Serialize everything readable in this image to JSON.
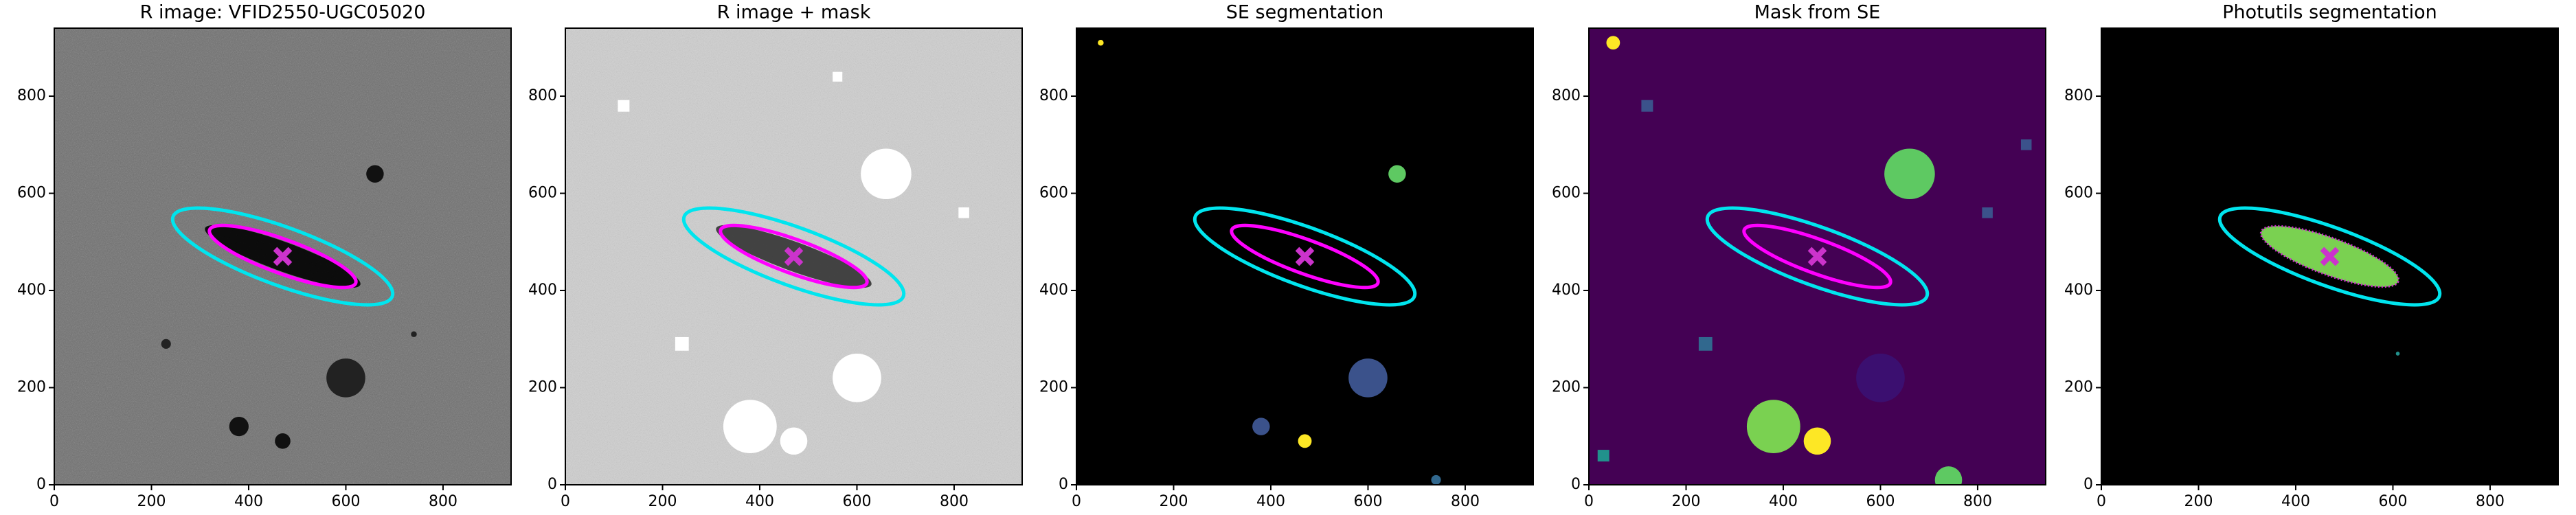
{
  "chart_data": [
    {
      "type": "image",
      "title": "R image: VFID2550-UGC05020",
      "background": "#6e6e6e",
      "xlim": [
        0,
        940
      ],
      "ylim": [
        0,
        940
      ],
      "xticks": [
        0,
        200,
        400,
        600,
        800
      ],
      "yticks": [
        0,
        200,
        400,
        600,
        800
      ],
      "ellipses": [
        {
          "color": "#00e5ee",
          "x": 470,
          "y": 470,
          "a": 240,
          "b": 60,
          "angle": -20
        },
        {
          "color": "#ff00ff",
          "x": 470,
          "y": 470,
          "a": 160,
          "b": 35,
          "angle": -20
        }
      ],
      "marker": {
        "color": "#cc33cc",
        "x": 470,
        "y": 470
      }
    },
    {
      "type": "image",
      "title": "R image + mask",
      "background": "#cfcfcf",
      "xlim": [
        0,
        940
      ],
      "ylim": [
        0,
        940
      ],
      "xticks": [
        0,
        200,
        400,
        600,
        800
      ],
      "yticks": [
        0,
        200,
        400,
        600,
        800
      ],
      "ellipses": [
        {
          "color": "#00e5ee",
          "x": 470,
          "y": 470,
          "a": 240,
          "b": 60,
          "angle": -20
        },
        {
          "color": "#ff00ff",
          "x": 470,
          "y": 470,
          "a": 160,
          "b": 35,
          "angle": -20
        }
      ],
      "marker": {
        "color": "#cc33cc",
        "x": 470,
        "y": 470
      }
    },
    {
      "type": "image",
      "title": "SE segmentation",
      "background": "#000000",
      "xlim": [
        0,
        940
      ],
      "ylim": [
        0,
        940
      ],
      "xticks": [
        0,
        200,
        400,
        600,
        800
      ],
      "yticks": [
        0,
        200,
        400,
        600,
        800
      ],
      "ellipses": [
        {
          "color": "#00e5ee",
          "x": 470,
          "y": 470,
          "a": 240,
          "b": 60,
          "angle": -20
        },
        {
          "color": "#ff00ff",
          "x": 470,
          "y": 470,
          "a": 160,
          "b": 35,
          "angle": -20
        }
      ],
      "marker": {
        "color": "#cc33cc",
        "x": 470,
        "y": 470
      }
    },
    {
      "type": "image",
      "title": "Mask from SE",
      "background": "#440154",
      "xlim": [
        0,
        940
      ],
      "ylim": [
        0,
        940
      ],
      "xticks": [
        0,
        200,
        400,
        600,
        800
      ],
      "yticks": [
        0,
        200,
        400,
        600,
        800
      ],
      "ellipses": [
        {
          "color": "#00e5ee",
          "x": 470,
          "y": 470,
          "a": 240,
          "b": 60,
          "angle": -20
        },
        {
          "color": "#ff00ff",
          "x": 470,
          "y": 470,
          "a": 160,
          "b": 35,
          "angle": -20
        }
      ],
      "marker": {
        "color": "#cc33cc",
        "x": 470,
        "y": 470
      }
    },
    {
      "type": "image",
      "title": "Photutils segmentation",
      "background": "#000000",
      "xlim": [
        0,
        940
      ],
      "ylim": [
        0,
        940
      ],
      "xticks": [
        0,
        200,
        400,
        600,
        800
      ],
      "yticks": [
        0,
        200,
        400,
        600,
        800
      ],
      "ellipses": [
        {
          "color": "#00e5ee",
          "x": 470,
          "y": 470,
          "a": 240,
          "b": 60,
          "angle": -20
        }
      ],
      "marker": {
        "color": "#cc33cc",
        "x": 470,
        "y": 470
      }
    }
  ]
}
